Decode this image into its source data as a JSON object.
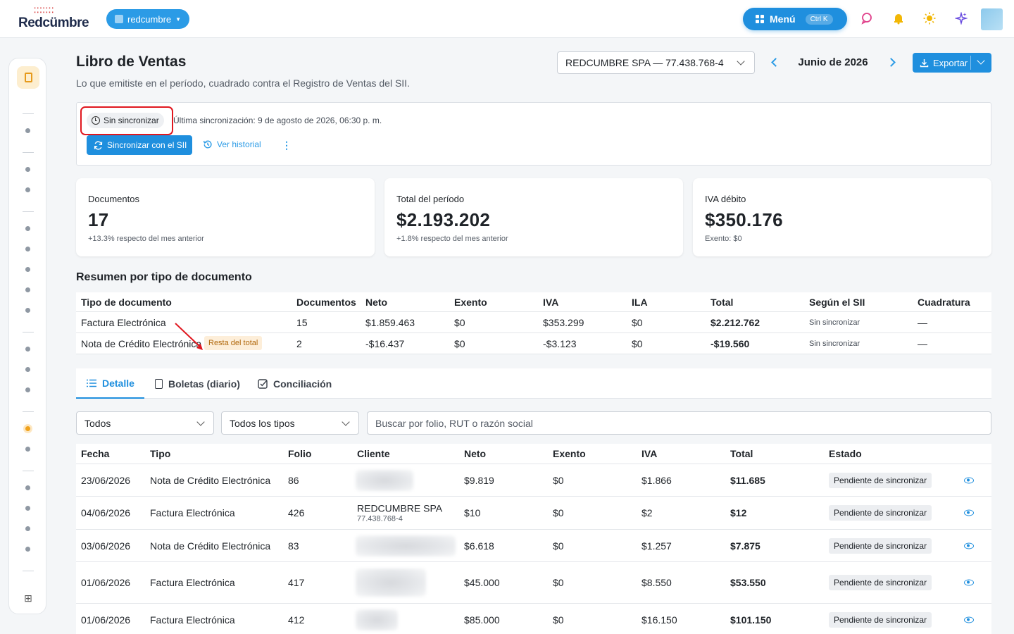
{
  "brand": {
    "logo_text": "Redcümbre",
    "accent": "#1f8fde",
    "alert": "#e0171f"
  },
  "topbar": {
    "org": "redcumbre",
    "menu_label": "Menú",
    "menu_shortcut": "Ctrl K",
    "icons": [
      "chat-icon",
      "bell-icon",
      "sun-icon",
      "sparkle-icon"
    ]
  },
  "header": {
    "title": "Libro de Ventas",
    "subtitle": "Lo que emitiste en el período, cuadrado contra el Registro de Ventas del SII.",
    "company": "REDCUMBRE SPA — 77.438.768-4",
    "period": "Junio de 2026",
    "export_label": "Exportar"
  },
  "sync": {
    "status": "Sin sincronizar",
    "last_sync": "Última sincronización: 9 de agosto de 2026, 06:30 p. m.",
    "sync_button": "Sincronizar con el SII",
    "history_button": "Ver historial",
    "more": "⋮"
  },
  "stats": [
    {
      "label": "Documentos",
      "value": "17",
      "sub": "+13.3% respecto del mes anterior"
    },
    {
      "label": "Total del período",
      "value": "$2.193.202",
      "sub": "+1.8% respecto del mes anterior"
    },
    {
      "label": "IVA débito",
      "value": "$350.176",
      "sub": "Exento: $0"
    }
  ],
  "summary": {
    "title": "Resumen por tipo de documento",
    "headers": [
      "Tipo de documento",
      "Documentos",
      "Neto",
      "Exento",
      "IVA",
      "ILA",
      "Total",
      "Según el SII",
      "Cuadratura"
    ],
    "rows": [
      [
        "Factura Electrónica",
        "15",
        "$1.859.463",
        "$0",
        "$353.299",
        "$0",
        "$2.212.762",
        "Sin sincronizar",
        "—"
      ],
      [
        "Nota de Crédito Electrónica",
        "2",
        "-$16.437",
        "$0",
        "-$3.123",
        "$0",
        "-$19.560",
        "Sin sincronizar",
        "—"
      ]
    ],
    "resta_badge": "Resta del total"
  },
  "tabs": [
    "Detalle",
    "Boletas (diario)",
    "Conciliación"
  ],
  "filters": {
    "status": "Todos",
    "type": "Todos los tipos",
    "search_placeholder": "Buscar por folio, RUT o razón social"
  },
  "detail": {
    "headers": [
      "Fecha",
      "Tipo",
      "Folio",
      "Cliente",
      "Neto",
      "Exento",
      "IVA",
      "Total",
      "Estado"
    ],
    "rows": [
      {
        "fecha": "23/06/2026",
        "tipo": "Nota de Crédito Electrónica",
        "folio": "86",
        "cliente": "",
        "rut": "",
        "neto": "$9.819",
        "exento": "$0",
        "iva": "$1.866",
        "total": "$11.685",
        "estado": "Pendiente de sincronizar"
      },
      {
        "fecha": "04/06/2026",
        "tipo": "Factura Electrónica",
        "folio": "426",
        "cliente": "REDCUMBRE SPA",
        "rut": "77.438.768-4",
        "neto": "$10",
        "exento": "$0",
        "iva": "$2",
        "total": "$12",
        "estado": "Pendiente de sincronizar"
      },
      {
        "fecha": "03/06/2026",
        "tipo": "Nota de Crédito Electrónica",
        "folio": "83",
        "cliente": "",
        "rut": "",
        "neto": "$6.618",
        "exento": "$0",
        "iva": "$1.257",
        "total": "$7.875",
        "estado": "Pendiente de sincronizar"
      },
      {
        "fecha": "01/06/2026",
        "tipo": "Factura Electrónica",
        "folio": "417",
        "cliente": "",
        "rut": "",
        "neto": "$45.000",
        "exento": "$0",
        "iva": "$8.550",
        "total": "$53.550",
        "estado": "Pendiente de sincronizar"
      },
      {
        "fecha": "01/06/2026",
        "tipo": "Factura Electrónica",
        "folio": "412",
        "cliente": "",
        "rut": "",
        "neto": "$85.000",
        "exento": "$0",
        "iva": "$16.150",
        "total": "$101.150",
        "estado": "Pendiente de sincronizar"
      }
    ]
  }
}
